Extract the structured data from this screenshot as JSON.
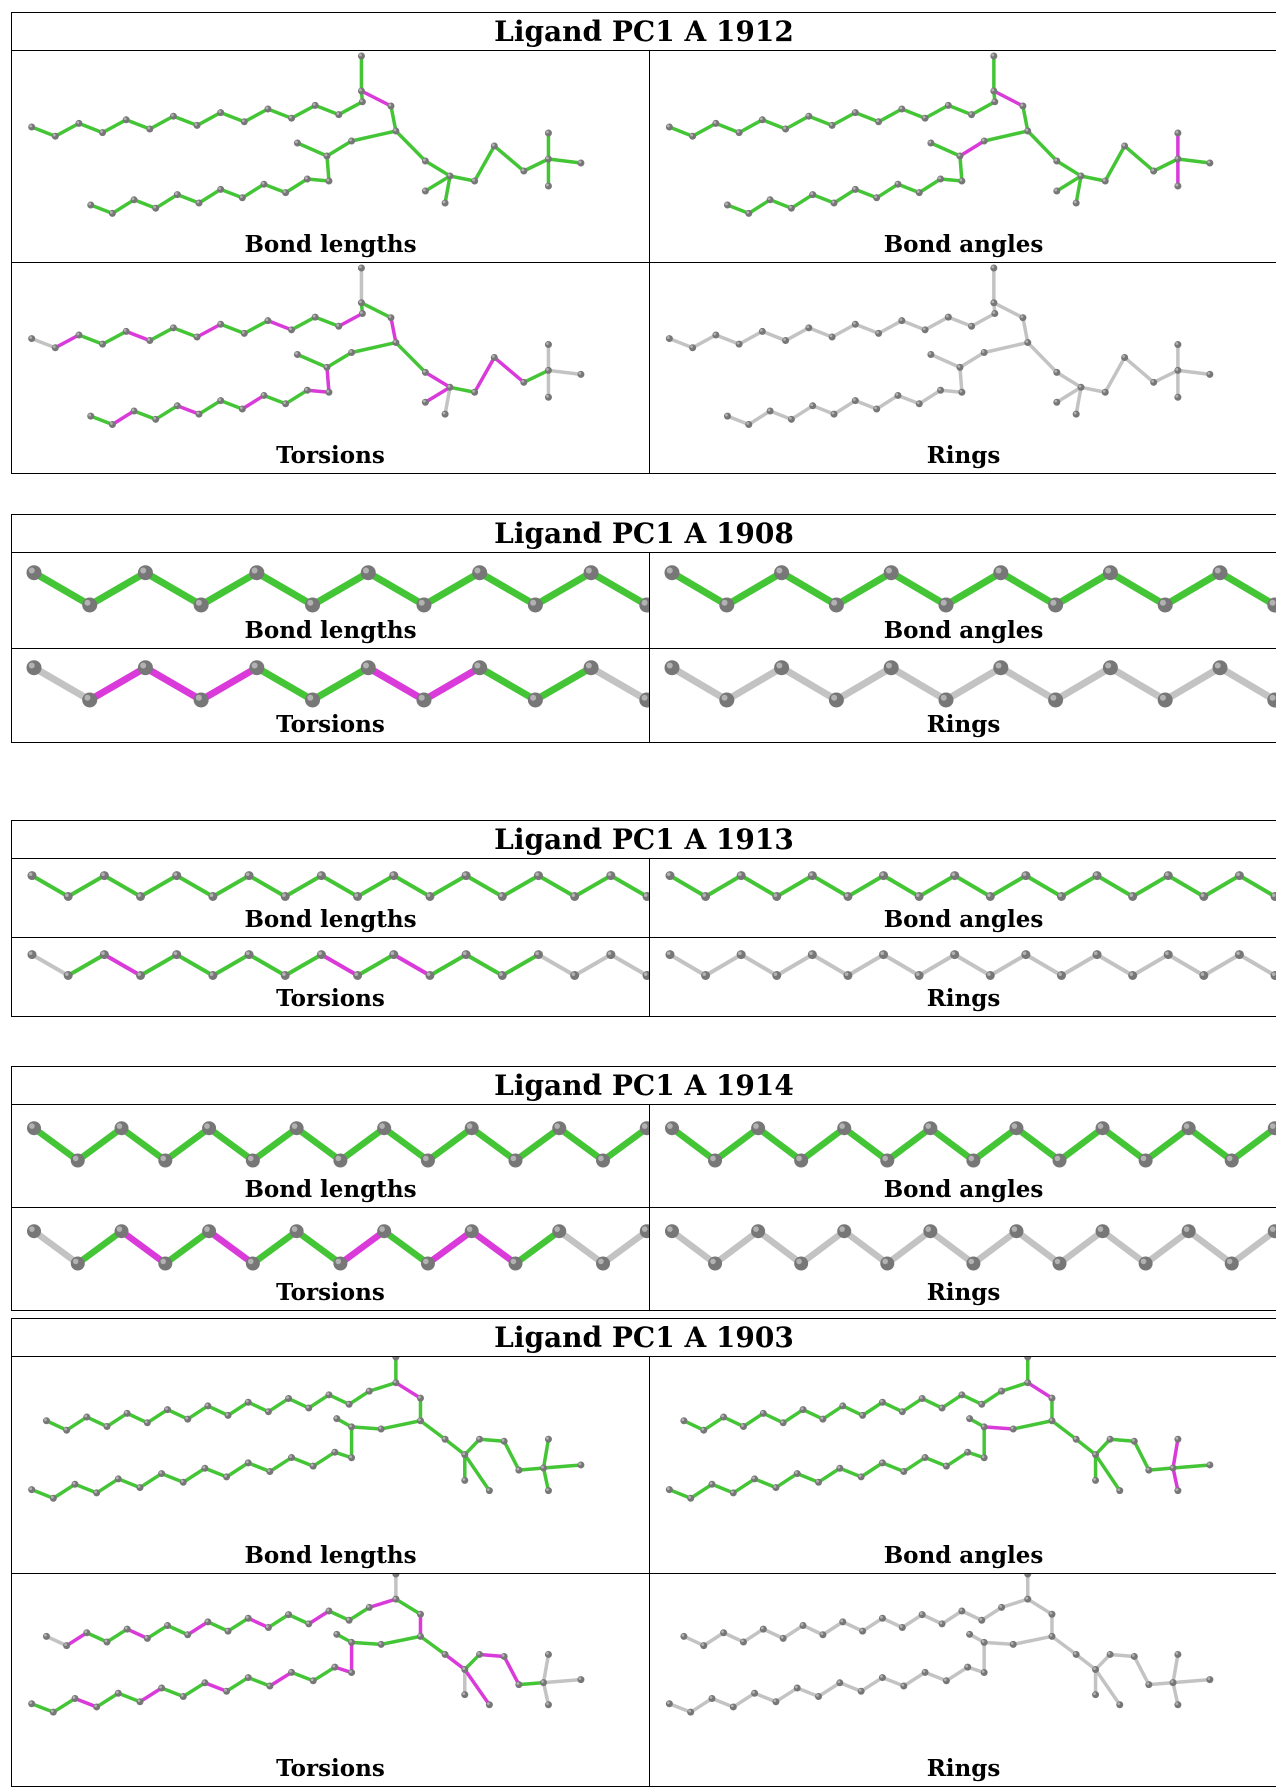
{
  "colors": {
    "ok": "#44c536",
    "outlier": "#d93ad9",
    "neutral": "#c3c3c3",
    "atom": "#777777",
    "atom_highlight": "#c0c0c0"
  },
  "ligands": [
    {
      "title": "Ligand PC1 A 1912",
      "panels": [
        {
          "label": "Bond lengths",
          "icon": "molecule-bond-lengths"
        },
        {
          "label": "Bond angles",
          "icon": "molecule-bond-angles"
        },
        {
          "label": "Torsions",
          "icon": "molecule-torsions"
        },
        {
          "label": "Rings",
          "icon": "molecule-rings"
        }
      ]
    },
    {
      "title": "Ligand PC1 A 1908",
      "panels": [
        {
          "label": "Bond lengths",
          "icon": "molecule-bond-lengths"
        },
        {
          "label": "Bond angles",
          "icon": "molecule-bond-angles"
        },
        {
          "label": "Torsions",
          "icon": "molecule-torsions"
        },
        {
          "label": "Rings",
          "icon": "molecule-rings"
        }
      ]
    },
    {
      "title": "Ligand PC1 A 1913",
      "panels": [
        {
          "label": "Bond lengths",
          "icon": "molecule-bond-lengths"
        },
        {
          "label": "Bond angles",
          "icon": "molecule-bond-angles"
        },
        {
          "label": "Torsions",
          "icon": "molecule-torsions"
        },
        {
          "label": "Rings",
          "icon": "molecule-rings"
        }
      ]
    },
    {
      "title": "Ligand PC1 A 1914",
      "panels": [
        {
          "label": "Bond lengths",
          "icon": "molecule-bond-lengths"
        },
        {
          "label": "Bond angles",
          "icon": "molecule-bond-angles"
        },
        {
          "label": "Torsions",
          "icon": "molecule-torsions"
        },
        {
          "label": "Rings",
          "icon": "molecule-rings"
        }
      ]
    },
    {
      "title": "Ligand PC1 A 1903",
      "panels": [
        {
          "label": "Bond lengths",
          "icon": "molecule-bond-lengths"
        },
        {
          "label": "Bond angles",
          "icon": "molecule-bond-angles"
        },
        {
          "label": "Torsions",
          "icon": "molecule-torsions"
        },
        {
          "label": "Rings",
          "icon": "molecule-rings"
        }
      ]
    }
  ]
}
